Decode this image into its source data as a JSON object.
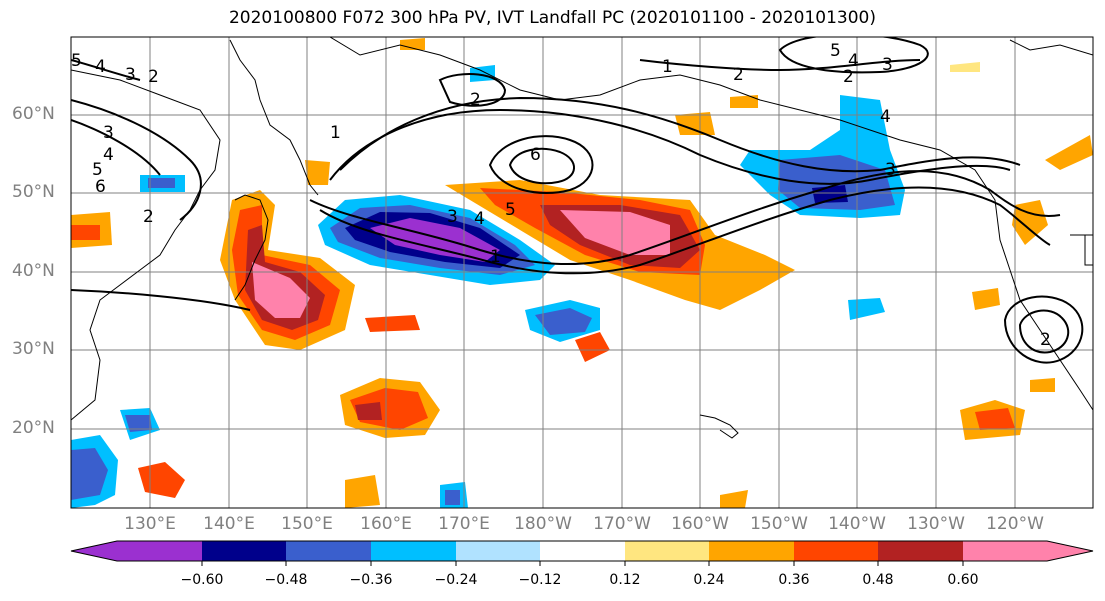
{
  "title": "2020100800 F072 300 hPa PV, IVT Landfall PC (2020101100 - 2020101300)",
  "lat_labels": [
    "60°N",
    "50°N",
    "40°N",
    "30°N",
    "20°N"
  ],
  "lon_labels": [
    "130°E",
    "140°E",
    "150°E",
    "160°E",
    "170°E",
    "180°W",
    "170°W",
    "160°W",
    "150°W",
    "140°W",
    "130°W",
    "120°W"
  ],
  "contour_labels": [
    "5",
    "4",
    "3",
    "2",
    "3",
    "4",
    "5",
    "6",
    "2",
    "1",
    "2",
    "1",
    "6",
    "5",
    "4",
    "3",
    "1",
    "2",
    "4",
    "3",
    "5",
    "2",
    "4",
    "3",
    "2"
  ],
  "colorbar": {
    "ticks": [
      "−0.60",
      "−0.48",
      "−0.36",
      "−0.24",
      "−0.12",
      "0.12",
      "0.24",
      "0.36",
      "0.48",
      "0.60"
    ],
    "colors": [
      "#9b30d0",
      "#00008b",
      "#3a5fcd",
      "#00bfff",
      "#b0e2ff",
      "#ffffff",
      "#ffe680",
      "#ffa500",
      "#ff4500",
      "#b22222",
      "#ff82ab"
    ]
  }
}
